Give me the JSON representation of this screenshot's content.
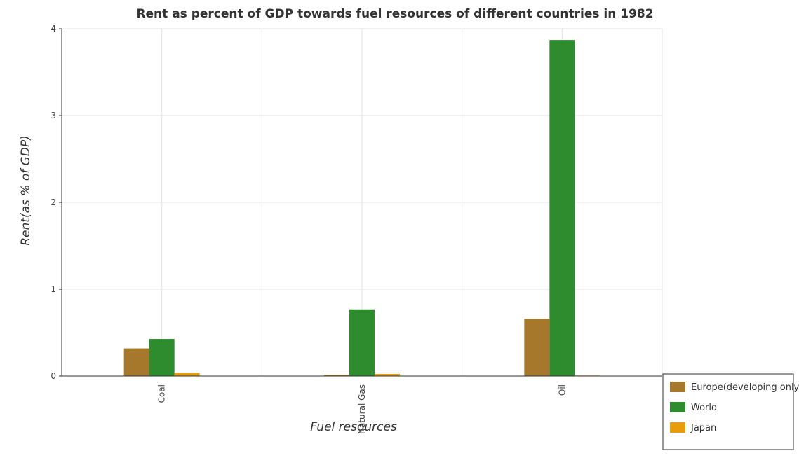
{
  "chart_data": {
    "type": "bar",
    "title": "Rent as percent of GDP towards fuel resources of different countries in 1982",
    "xlabel": "Fuel resources",
    "ylabel": "Rent(as % of GDP)",
    "categories": [
      "Coal",
      "Natural Gas",
      "Oil"
    ],
    "ylim": [
      0,
      4
    ],
    "yticks": [
      "0",
      "1",
      "2",
      "3",
      "4"
    ],
    "grid": true,
    "legend_position": "bottom-right",
    "series": [
      {
        "name": "Europe(developing only)",
        "color": "#a6782c",
        "values": [
          0.318,
          0.015,
          0.66
        ]
      },
      {
        "name": "World",
        "color": "#2e8b2e",
        "values": [
          0.427,
          0.768,
          3.87
        ]
      },
      {
        "name": "Japan",
        "color": "#e89c0c",
        "values": [
          0.036,
          0.024,
          0.006
        ]
      }
    ]
  }
}
